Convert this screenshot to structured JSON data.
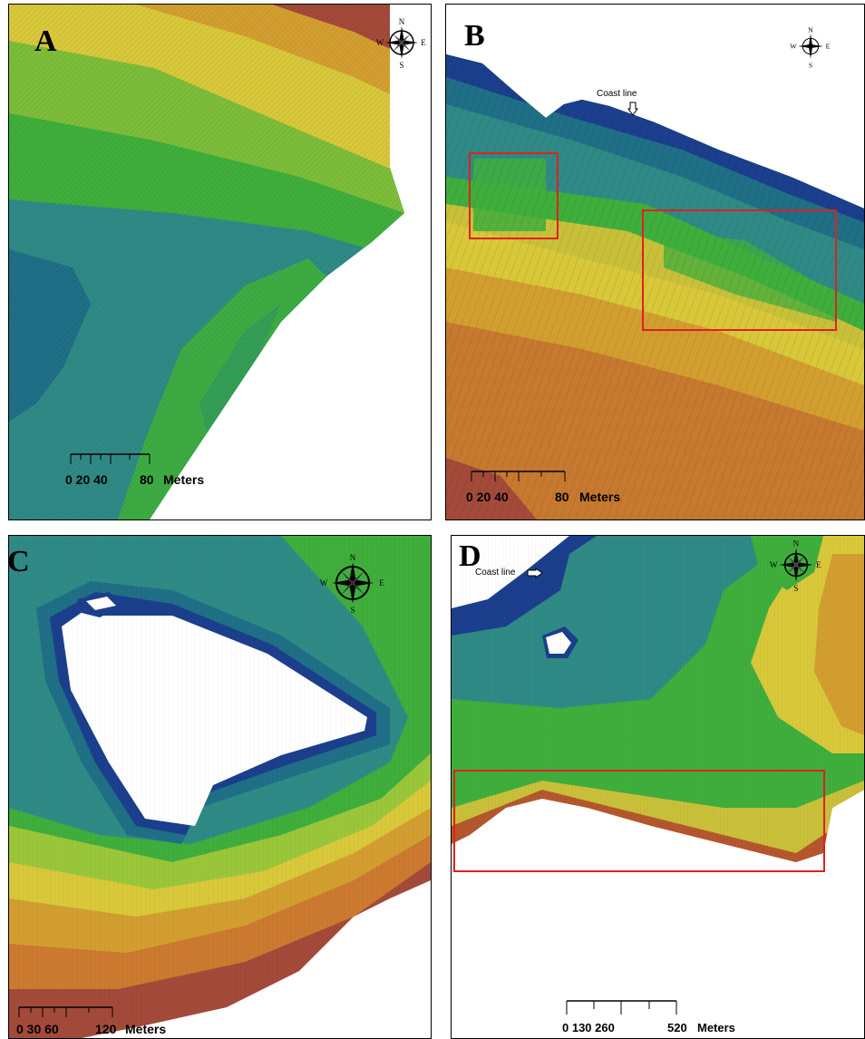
{
  "panels": [
    {
      "id": "A",
      "label": "A",
      "compass": {
        "n": "N",
        "s": "S",
        "e": "E",
        "w": "W"
      },
      "scale": {
        "ticks": "0 20 40",
        "end": "80",
        "unit": "Meters"
      }
    },
    {
      "id": "B",
      "label": "B",
      "compass": {
        "n": "N",
        "s": "S",
        "e": "E",
        "w": "W"
      },
      "scale": {
        "ticks": "0 20 40",
        "end": "80",
        "unit": "Meters"
      },
      "coast_label": "Coast line"
    },
    {
      "id": "C",
      "label": "C",
      "compass": {
        "n": "N",
        "s": "S",
        "e": "E",
        "w": "W"
      },
      "scale": {
        "ticks": "0 30 60",
        "end": "120",
        "unit": "Meters"
      }
    },
    {
      "id": "D",
      "label": "D",
      "compass": {
        "n": "N",
        "s": "S",
        "e": "E",
        "w": "W"
      },
      "scale": {
        "ticks": "0 130 260",
        "end": "520",
        "unit": "Meters"
      },
      "coast_label": "Coast line"
    }
  ],
  "colors": {
    "deep_blue": "#1b3f8c",
    "teal": "#2f8a86",
    "green": "#3fae3c",
    "yellow_green": "#9ac63a",
    "yellow": "#d8c83a",
    "orange": "#cc8a2e",
    "red_brown": "#a44a3a",
    "highlight_box": "#e02020"
  }
}
